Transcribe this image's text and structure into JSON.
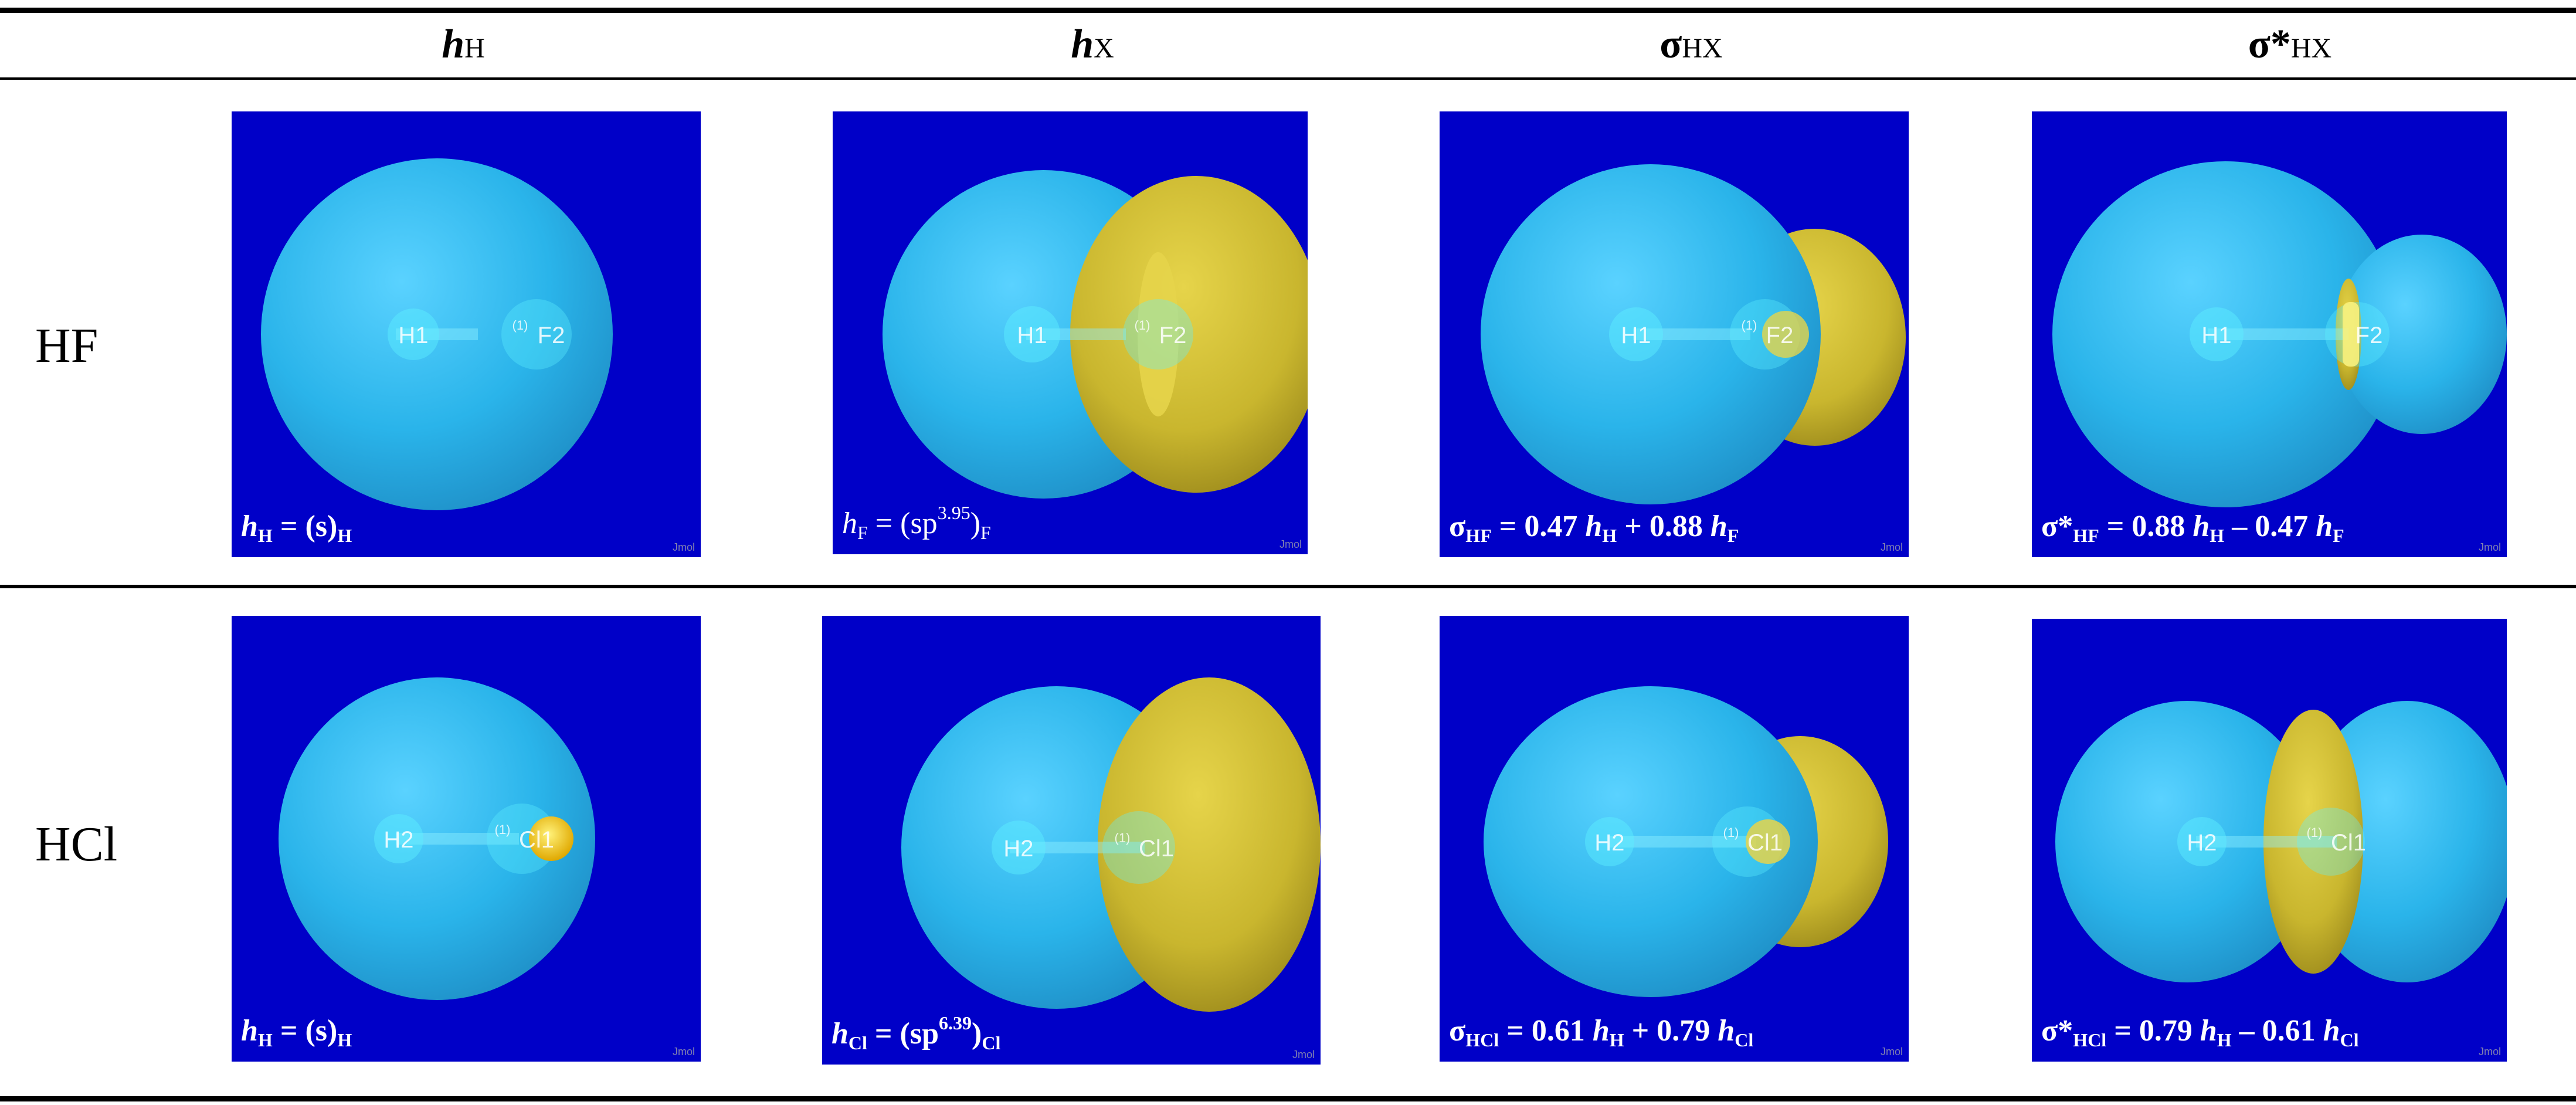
{
  "header": {
    "col1": {
      "main": "h",
      "sub": "H"
    },
    "col2": {
      "main": "h",
      "sub": "X"
    },
    "col3": {
      "main": "σ",
      "sub": "HX"
    },
    "col4": {
      "main": "σ*",
      "sub": "HX"
    }
  },
  "rows": {
    "hf": {
      "label": "HF",
      "atom_h": "H1",
      "atom_x": "F2",
      "marker": "(1)",
      "jmol": "Jmol",
      "captions": {
        "c1": {
          "h": "h",
          "sub_h": "H",
          "eq": " = (s)",
          "sub_end": "H"
        },
        "c2": {
          "h": "h",
          "sub_h": "F",
          "eq": " = (sp",
          "sup": "3.95",
          "close": ")",
          "sub_end": "F"
        },
        "c3": {
          "sym": "σ",
          "sub_sym": "HF",
          "eq1": " = 0.47 ",
          "h1": "h",
          "sub_h1": "H",
          "eq2": " + 0.88 ",
          "h2": "h",
          "sub_h2": "F"
        },
        "c4": {
          "sym": "σ*",
          "sub_sym": "HF",
          "eq1": " = 0.88 ",
          "h1": "h",
          "sub_h1": "H",
          "eq2": " – 0.47 ",
          "h2": "h",
          "sub_h2": "F"
        }
      }
    },
    "hcl": {
      "label": "HCl",
      "atom_h": "H2",
      "atom_x": "Cl1",
      "marker": "(1)",
      "jmol": "Jmol",
      "captions": {
        "c1": {
          "h": "h",
          "sub_h": "H",
          "eq": " = (s)",
          "sub_end": "H"
        },
        "c2": {
          "h": "h",
          "sub_h": "Cl",
          "eq": " = (sp",
          "sup": "6.39",
          "close": ")",
          "sub_end": "Cl"
        },
        "c3": {
          "sym": "σ",
          "sub_sym": "HCl",
          "eq1": " = 0.61 ",
          "h1": "h",
          "sub_h1": "H",
          "eq2": " + 0.79 ",
          "h2": "h",
          "sub_h2": "Cl"
        },
        "c4": {
          "sym": "σ*",
          "sub_sym": "HCl",
          "eq1": " = 0.79 ",
          "h1": "h",
          "sub_h1": "H",
          "eq2": " – 0.61 ",
          "h2": "h",
          "sub_h2": "Cl"
        }
      }
    }
  },
  "colors": {
    "background": "#0000c8",
    "positive_lobe": "#2ab4ea",
    "negative_lobe": "#c9b62e",
    "atom_core": "#f0c800"
  }
}
